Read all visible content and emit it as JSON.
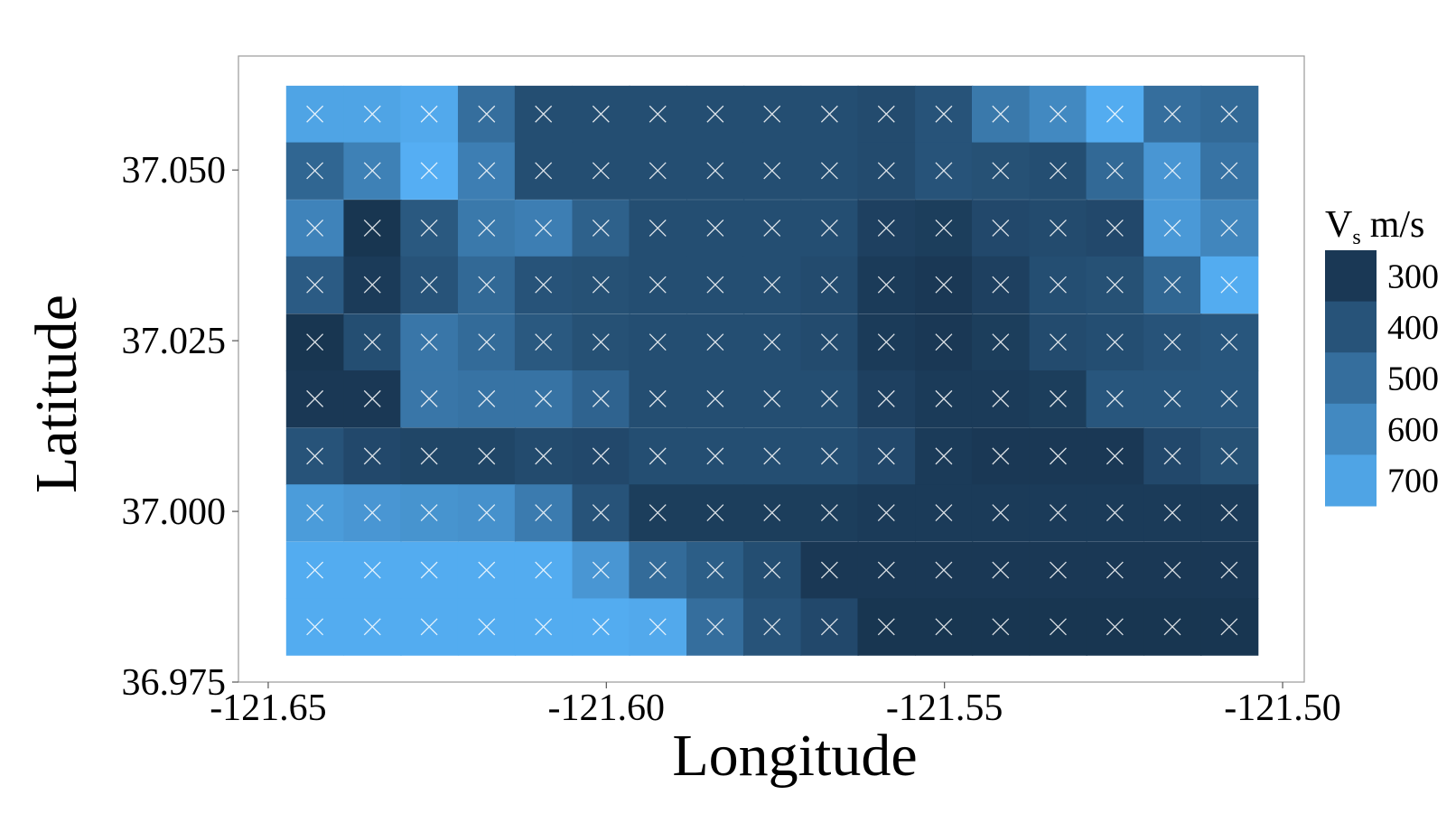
{
  "chart_data": {
    "type": "heatmap",
    "x_label": "Longitude",
    "y_label": "Latitude",
    "legend_title": {
      "symbol": "V",
      "subscript": "s",
      "unit": "m/s"
    },
    "x": [
      -121.6431,
      -121.6346,
      -121.6262,
      -121.6177,
      -121.6093,
      -121.6008,
      -121.5924,
      -121.5839,
      -121.5755,
      -121.567,
      -121.5586,
      -121.5501,
      -121.5417,
      -121.5332,
      -121.5248,
      -121.5163,
      -121.5079
    ],
    "y": [
      37.0582,
      37.0499,
      37.0415,
      37.0332,
      37.0248,
      37.0165,
      37.0081,
      36.9998,
      36.9914,
      36.9831
    ],
    "values": [
      [
        700,
        700,
        720,
        500,
        380,
        380,
        380,
        380,
        380,
        380,
        370,
        400,
        540,
        600,
        730,
        500,
        480
      ],
      [
        470,
        570,
        740,
        560,
        380,
        380,
        380,
        380,
        380,
        380,
        370,
        400,
        390,
        380,
        480,
        650,
        520
      ],
      [
        580,
        290,
        420,
        540,
        560,
        450,
        380,
        380,
        380,
        380,
        330,
        320,
        360,
        370,
        360,
        660,
        590
      ],
      [
        430,
        310,
        400,
        480,
        400,
        390,
        380,
        380,
        380,
        370,
        310,
        300,
        330,
        380,
        390,
        470,
        730
      ],
      [
        290,
        380,
        530,
        490,
        420,
        390,
        380,
        380,
        380,
        370,
        310,
        300,
        320,
        370,
        380,
        400,
        410
      ],
      [
        300,
        300,
        530,
        520,
        520,
        460,
        380,
        380,
        380,
        380,
        330,
        310,
        310,
        320,
        410,
        410,
        410
      ],
      [
        400,
        360,
        350,
        350,
        370,
        360,
        380,
        380,
        380,
        380,
        360,
        310,
        300,
        300,
        300,
        360,
        390
      ],
      [
        670,
        650,
        640,
        630,
        550,
        400,
        320,
        320,
        320,
        320,
        310,
        310,
        310,
        310,
        310,
        310,
        310
      ],
      [
        730,
        730,
        730,
        730,
        730,
        650,
        490,
        440,
        380,
        300,
        300,
        300,
        300,
        300,
        300,
        300,
        300
      ],
      [
        730,
        730,
        730,
        730,
        730,
        730,
        720,
        500,
        400,
        360,
        290,
        290,
        290,
        290,
        290,
        290,
        290
      ]
    ],
    "colorscale": [
      "#132B43",
      "#56B1F7"
    ],
    "clim": [
      250,
      750
    ],
    "cticks": [
      300,
      400,
      500,
      600,
      700
    ],
    "xlim": [
      -121.6544,
      -121.4968
    ],
    "xticks": [
      -121.65,
      {
        "value": -121.6,
        "label": "-121.60"
      },
      -121.55,
      {
        "value": -121.5,
        "label": "-121.50"
      }
    ],
    "ylim": [
      36.975,
      37.0667
    ],
    "yticks": [
      {
        "value": 36.975,
        "label": "36.975"
      },
      {
        "value": 37.0,
        "label": "37.000"
      },
      {
        "value": 37.025,
        "label": "37.025"
      },
      {
        "value": 37.05,
        "label": "37.050"
      }
    ],
    "marker_color": "#ffffff"
  }
}
